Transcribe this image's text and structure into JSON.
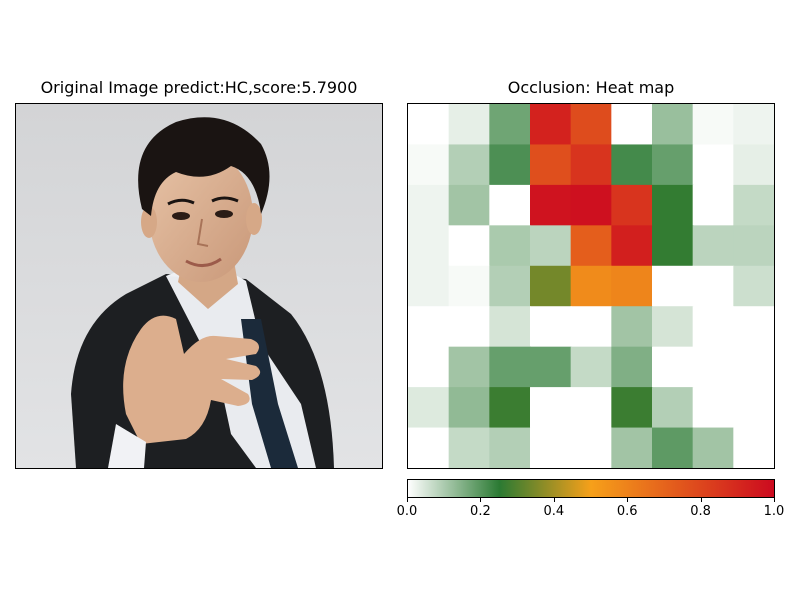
{
  "left_panel": {
    "title": "Original Image predict:HC,score:5.7900",
    "image_description": "photo-of-man-in-suit"
  },
  "chart_data": {
    "type": "heatmap",
    "title": "Occlusion: Heat map",
    "rows": 9,
    "cols": 9,
    "values": [
      [
        0.0,
        0.03,
        0.17,
        0.92,
        0.78,
        0.0,
        0.12,
        0.01,
        0.02
      ],
      [
        0.01,
        0.09,
        0.21,
        0.77,
        0.86,
        0.22,
        0.18,
        0.0,
        0.03
      ],
      [
        0.02,
        0.11,
        0.0,
        0.97,
        0.98,
        0.86,
        0.26,
        0.0,
        0.07
      ],
      [
        0.02,
        0.0,
        0.1,
        0.08,
        0.72,
        0.93,
        0.26,
        0.08,
        0.08
      ],
      [
        0.02,
        0.01,
        0.09,
        0.34,
        0.57,
        0.59,
        0.0,
        0.0,
        0.06
      ],
      [
        0.0,
        0.0,
        0.05,
        0.0,
        0.0,
        0.11,
        0.05,
        0.0,
        0.0
      ],
      [
        0.0,
        0.11,
        0.18,
        0.18,
        0.07,
        0.15,
        0.0,
        0.0,
        0.0
      ],
      [
        0.04,
        0.13,
        0.27,
        0.0,
        0.0,
        0.27,
        0.09,
        0.0,
        0.0
      ],
      [
        0.0,
        0.07,
        0.09,
        0.0,
        0.0,
        0.11,
        0.19,
        0.11,
        0.0
      ]
    ],
    "colorbar": {
      "min": 0.0,
      "max": 1.0,
      "ticks": [
        "0.0",
        "0.2",
        "0.4",
        "0.6",
        "0.8",
        "1.0"
      ],
      "colors": [
        "#ffffff",
        "#2b7a33",
        "#f6a01a",
        "#cc0a1f"
      ]
    }
  }
}
